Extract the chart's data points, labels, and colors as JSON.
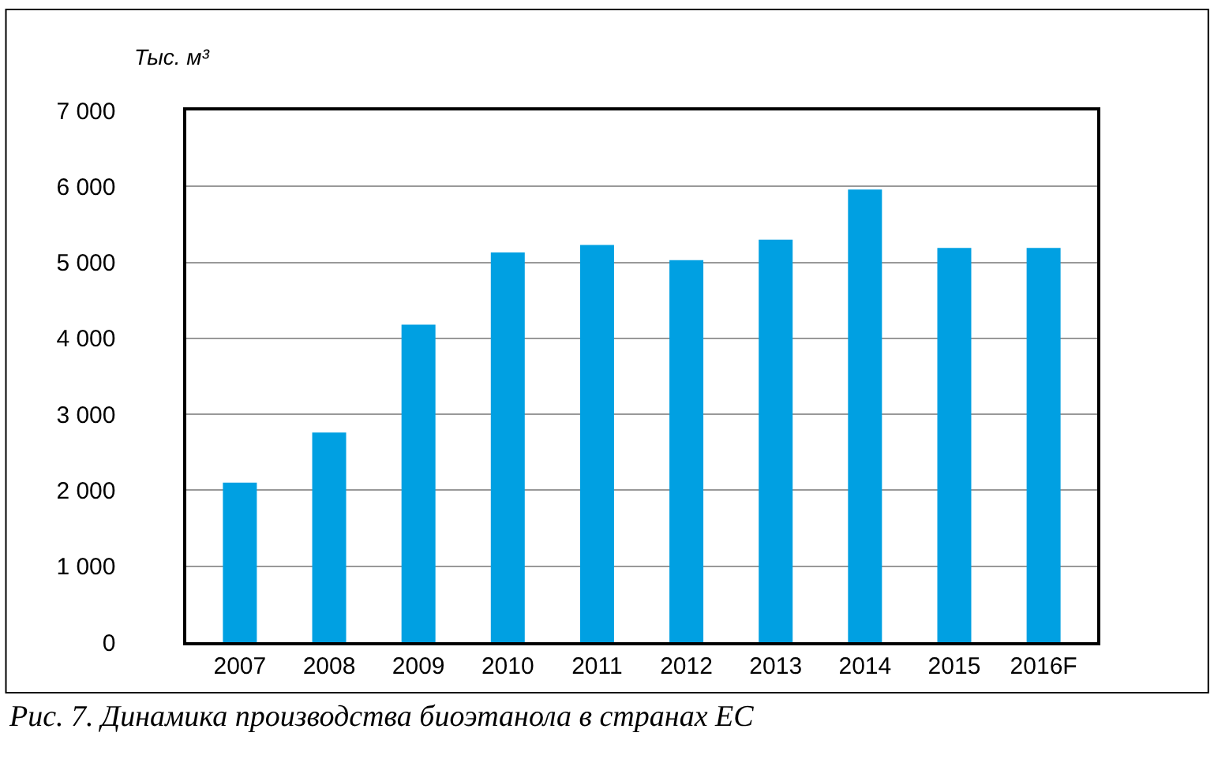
{
  "chart_data": {
    "type": "bar",
    "ylabel": "Тыс. м³",
    "categories": [
      "2007",
      "2008",
      "2009",
      "2010",
      "2011",
      "2012",
      "2013",
      "2014",
      "2015",
      "2016F"
    ],
    "values": [
      2100,
      2760,
      4180,
      5130,
      5230,
      5030,
      5300,
      5960,
      5190,
      5190
    ],
    "color": "#00a0e2",
    "ylim": [
      0,
      7000
    ],
    "yticks": [
      0,
      {
        "value": 1000,
        "label": "1 000"
      },
      {
        "value": 2000,
        "label": "2 000"
      },
      {
        "value": 3000,
        "label": "3 000"
      },
      {
        "value": 4000,
        "label": "4 000"
      },
      {
        "value": 5000,
        "label": "5 000"
      },
      {
        "value": 6000,
        "label": "6 000"
      },
      {
        "value": 7000,
        "label": "7 000"
      }
    ],
    "grid": "y",
    "annotations": [
      "Рис. 7. Динамика производства биоэтанола в странах ЕС"
    ]
  }
}
